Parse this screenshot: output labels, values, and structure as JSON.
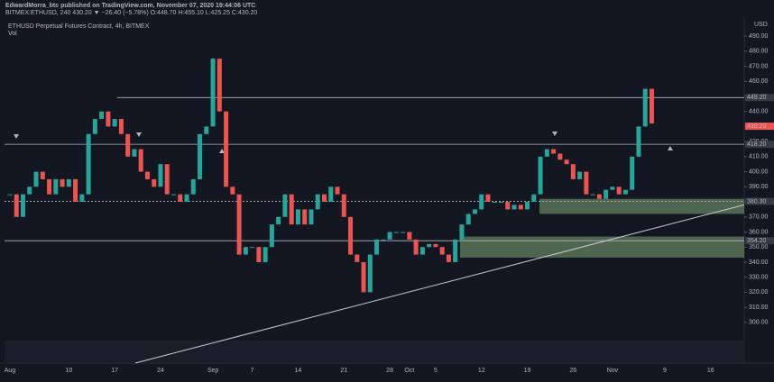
{
  "header": {
    "line1": "EdwardMorra_btc published on TradingView.com, November 07, 2020 19:44:06 UTC",
    "line2": "BITMEX:ETHUSD, 240  430.20 ▼ −26.40 (−5.78%) O:448.70 H:455.10 L:425.25 C:430.20"
  },
  "chart_data": {
    "type": "candlestick",
    "title": "ETHUSD Perpetual Futures Contract, 4h, BITMEX",
    "subtitle": "Vol",
    "y_unit": "USD",
    "categories": [
      "Aug",
      null,
      null,
      null,
      null,
      null,
      null,
      null,
      null,
      "10",
      null,
      null,
      null,
      null,
      null,
      null,
      "17",
      null,
      null,
      null,
      null,
      null,
      null,
      "24",
      null,
      null,
      null,
      null,
      null,
      null,
      null,
      "Sep",
      null,
      null,
      null,
      null,
      null,
      "7",
      null,
      null,
      null,
      null,
      null,
      null,
      "14",
      null,
      null,
      null,
      null,
      null,
      null,
      "21",
      null,
      null,
      null,
      null,
      null,
      null,
      "28",
      null,
      null,
      "Oct",
      null,
      null,
      null,
      "5",
      null,
      null,
      null,
      null,
      null,
      null,
      "12",
      null,
      null,
      null,
      null,
      null,
      null,
      "19",
      null,
      null,
      null,
      null,
      null,
      null,
      "26",
      null,
      null,
      null,
      null,
      null,
      "Nov",
      null,
      null,
      null,
      null,
      null,
      null,
      null,
      "9",
      null,
      null,
      null,
      null,
      null,
      null,
      "16",
      null,
      null,
      null
    ],
    "values": [
      385,
      370,
      385,
      390,
      400,
      395,
      385,
      395,
      390,
      395,
      380,
      385,
      425,
      435,
      440,
      430,
      435,
      425,
      410,
      415,
      400,
      395,
      390,
      405,
      385,
      385,
      380,
      385,
      395,
      425,
      430,
      475,
      440,
      390,
      385,
      345,
      350,
      350,
      340,
      350,
      365,
      370,
      385,
      365,
      375,
      365,
      375,
      385,
      380,
      390,
      385,
      370,
      345,
      340,
      320,
      345,
      355,
      355,
      360,
      360,
      360,
      355,
      345,
      350,
      352,
      350,
      345,
      340,
      355,
      365,
      372,
      375,
      385,
      380,
      380,
      380,
      375,
      378,
      375,
      380,
      385,
      410,
      415,
      412,
      408,
      405,
      395,
      400,
      385,
      385,
      382,
      388,
      390,
      385,
      388,
      410,
      430,
      455,
      432,
      null,
      null,
      null,
      null,
      null,
      null,
      null,
      null,
      null,
      null,
      null,
      null
    ],
    "up_color": "#26a69a",
    "down_color": "#ef5350",
    "ylim": [
      273,
      502
    ],
    "yticks": [
      {
        "value": 300,
        "label": "300.00"
      },
      {
        "value": 310,
        "label": "310.00"
      },
      {
        "value": 320,
        "label": "320.00"
      },
      {
        "value": 330,
        "label": "330.00"
      },
      {
        "value": 340,
        "label": "340.00"
      },
      {
        "value": 350,
        "label": "350.00"
      },
      {
        "value": 360,
        "label": "360.00"
      },
      {
        "value": 370,
        "label": "370.00"
      },
      {
        "value": 380,
        "label": "380.00"
      },
      {
        "value": 390,
        "label": "390.00"
      },
      {
        "value": 400,
        "label": "400.00"
      },
      {
        "value": 410,
        "label": "410.00"
      },
      {
        "value": 420,
        "label": "420.00"
      },
      {
        "value": 430,
        "label": "430.00"
      },
      {
        "value": 440,
        "label": "440.00"
      },
      {
        "value": 450,
        "label": "450.00"
      },
      {
        "value": 460,
        "label": "460.00"
      },
      {
        "value": 470,
        "label": "470.00"
      },
      {
        "value": 480,
        "label": "480.00"
      },
      {
        "value": 490,
        "label": "490.00"
      }
    ],
    "levels": [
      {
        "value": 449.2,
        "label": "449.20"
      },
      {
        "value": 418.2,
        "label": "418.20"
      },
      {
        "value": 380.3,
        "label": "380.30"
      },
      {
        "value": 354.2,
        "label": "354.20"
      }
    ],
    "last_price": {
      "value": 430.2,
      "label": "430.20"
    },
    "zones": [
      {
        "low": 372,
        "high": 382
      },
      {
        "low": 343,
        "high": 357
      }
    ],
    "trendline": [
      273,
      378
    ]
  }
}
